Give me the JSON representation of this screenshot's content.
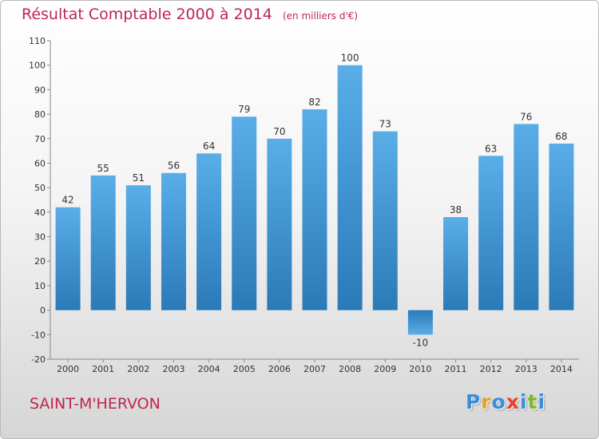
{
  "chart_data": {
    "type": "bar",
    "title": "Résultat Comptable 2000 à 2014",
    "subtitle": "(en milliers d'€)",
    "categories": [
      "2000",
      "2001",
      "2002",
      "2003",
      "2004",
      "2005",
      "2006",
      "2007",
      "2008",
      "2009",
      "2010",
      "2011",
      "2012",
      "2013",
      "2014"
    ],
    "values": [
      42,
      55,
      51,
      56,
      64,
      79,
      70,
      82,
      100,
      73,
      -10,
      38,
      63,
      76,
      68
    ],
    "value_labels": [
      "42",
      "55",
      "51",
      "56",
      "64",
      "79",
      "70",
      "82",
      "100",
      "73",
      "-10",
      "38",
      "63",
      "76",
      "68"
    ],
    "yticks": [
      -20,
      -10,
      0,
      10,
      20,
      30,
      40,
      50,
      60,
      70,
      80,
      90,
      100,
      110
    ],
    "ylim": [
      -20,
      110
    ],
    "xlabel": "",
    "ylabel": "",
    "grid": false,
    "legend": "none",
    "bar_color_top": "#5aaee8",
    "bar_color_bottom": "#2a7ab8"
  },
  "footer": {
    "commune": "SAINT-M'HERVON",
    "brand_letters": [
      {
        "char": "P",
        "color": "#3a8fd8"
      },
      {
        "char": "r",
        "color": "#e8a020"
      },
      {
        "char": "o",
        "color": "#3a8fd8"
      },
      {
        "char": "x",
        "color": "#e84030"
      },
      {
        "char": "i",
        "color": "#3a8fd8"
      },
      {
        "char": "t",
        "color": "#7ab82a"
      },
      {
        "char": "i",
        "color": "#3a8fd8"
      }
    ]
  },
  "colors": {
    "title": "#c0254e",
    "axis": "#888888",
    "tick_text": "#333333"
  }
}
